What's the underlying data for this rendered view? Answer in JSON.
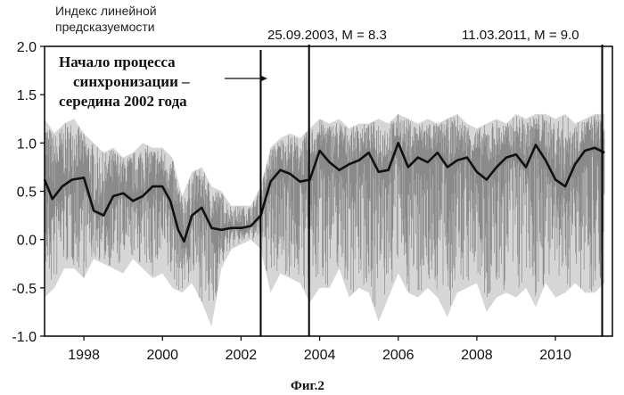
{
  "chart_data": {
    "type": "line",
    "title": "",
    "ylabel_line1": "Индекс линейной",
    "ylabel_line2": "предсказуемости",
    "caption": "Фиг.2",
    "xlim": [
      1997.0,
      2011.45
    ],
    "ylim": [
      -1.0,
      2.0
    ],
    "x_ticks": [
      1998,
      2000,
      2002,
      2004,
      2006,
      2008,
      2010
    ],
    "x_tick_labels": [
      "1998",
      "2000",
      "2002",
      "2004",
      "2006",
      "2008",
      "2010"
    ],
    "y_ticks": [
      -1.0,
      -0.5,
      0.0,
      0.5,
      1.0,
      1.5,
      2.0
    ],
    "y_tick_labels": [
      "-1.0",
      "-0.5",
      "0.0",
      "0.5",
      "1.0",
      "1.5",
      "2.0"
    ],
    "grid": false,
    "legend": "none",
    "series": [
      {
        "role": "raw",
        "color": "#8a8a8a",
        "x": [
          1997.0,
          1997.25,
          1997.5,
          1997.75,
          1998.0,
          1998.25,
          1998.5,
          1998.75,
          1999.0,
          1999.25,
          1999.5,
          1999.75,
          2000.0,
          2000.25,
          2000.5,
          2000.75,
          2001.0,
          2001.25,
          2001.5,
          2001.75,
          2002.0,
          2002.25,
          2002.5,
          2002.75,
          2003.0,
          2003.25,
          2003.5,
          2003.75,
          2004.0,
          2004.25,
          2004.5,
          2004.75,
          2005.0,
          2005.25,
          2005.5,
          2005.75,
          2006.0,
          2006.25,
          2006.5,
          2006.75,
          2007.0,
          2007.25,
          2007.5,
          2007.75,
          2008.0,
          2008.25,
          2008.5,
          2008.75,
          2009.0,
          2009.25,
          2009.5,
          2009.75,
          2010.0,
          2010.25,
          2010.5,
          2010.75,
          2011.0,
          2011.25
        ],
        "y_upper": [
          1.25,
          1.1,
          1.2,
          1.25,
          1.1,
          1.0,
          0.9,
          0.95,
          0.85,
          0.9,
          1.0,
          0.95,
          0.95,
          0.85,
          0.45,
          0.7,
          0.75,
          0.55,
          0.5,
          0.35,
          0.35,
          0.35,
          0.55,
          0.95,
          1.05,
          1.1,
          1.05,
          1.15,
          1.25,
          1.2,
          1.25,
          1.15,
          1.2,
          1.2,
          1.25,
          1.2,
          1.3,
          1.25,
          1.2,
          1.25,
          1.2,
          1.25,
          1.3,
          1.2,
          1.15,
          1.2,
          1.25,
          1.2,
          1.3,
          1.25,
          1.3,
          1.3,
          1.25,
          1.3,
          1.2,
          1.25,
          1.3,
          1.3
        ],
        "y_lower": [
          -0.6,
          -0.5,
          -0.3,
          -0.3,
          -0.4,
          -0.2,
          -0.25,
          -0.3,
          -0.35,
          -0.2,
          -0.3,
          -0.4,
          -0.35,
          -0.5,
          -0.55,
          -0.45,
          -0.65,
          -0.9,
          -0.3,
          -0.1,
          -0.05,
          0.0,
          -0.1,
          -0.55,
          -0.35,
          -0.4,
          -0.45,
          -0.65,
          -0.5,
          -0.5,
          -0.3,
          -0.6,
          -0.5,
          -0.55,
          -0.85,
          -0.6,
          -0.35,
          -0.55,
          -0.6,
          -0.5,
          -0.6,
          -0.8,
          -0.55,
          -0.5,
          -0.45,
          -0.75,
          -0.6,
          -0.55,
          -0.6,
          -0.5,
          -0.7,
          -0.45,
          -0.6,
          -0.55,
          -0.45,
          -0.55,
          -0.55,
          -0.45
        ]
      },
      {
        "role": "smoothed",
        "color": "#111111",
        "x": [
          1997.0,
          1997.2,
          1997.45,
          1997.7,
          1998.0,
          1998.25,
          1998.5,
          1998.75,
          1999.0,
          1999.25,
          1999.5,
          1999.75,
          2000.0,
          2000.2,
          2000.4,
          2000.55,
          2000.75,
          2001.0,
          2001.25,
          2001.5,
          2001.75,
          2002.0,
          2002.25,
          2002.5,
          2002.75,
          2003.0,
          2003.25,
          2003.5,
          2003.75,
          2004.0,
          2004.25,
          2004.5,
          2004.75,
          2005.0,
          2005.25,
          2005.5,
          2005.75,
          2006.0,
          2006.25,
          2006.5,
          2006.75,
          2007.0,
          2007.25,
          2007.5,
          2007.75,
          2008.0,
          2008.25,
          2008.5,
          2008.75,
          2009.0,
          2009.25,
          2009.5,
          2009.75,
          2010.0,
          2010.25,
          2010.5,
          2010.75,
          2011.0,
          2011.25
        ],
        "values": [
          0.62,
          0.42,
          0.55,
          0.62,
          0.64,
          0.3,
          0.25,
          0.45,
          0.48,
          0.4,
          0.45,
          0.55,
          0.55,
          0.4,
          0.1,
          -0.02,
          0.25,
          0.33,
          0.12,
          0.1,
          0.12,
          0.12,
          0.14,
          0.25,
          0.6,
          0.72,
          0.68,
          0.6,
          0.62,
          0.92,
          0.8,
          0.72,
          0.78,
          0.82,
          0.9,
          0.7,
          0.72,
          1.0,
          0.75,
          0.85,
          0.8,
          0.9,
          0.75,
          0.82,
          0.85,
          0.7,
          0.62,
          0.75,
          0.85,
          0.88,
          0.75,
          0.98,
          0.82,
          0.62,
          0.55,
          0.78,
          0.92,
          0.95,
          0.9
        ]
      }
    ],
    "event_lines": [
      {
        "x": 2002.5,
        "label": ""
      },
      {
        "x": 2003.73,
        "label": "25.09.2003, M = 8.3"
      },
      {
        "x": 2011.19,
        "label": "11.03.2011, M = 9.0"
      }
    ],
    "annotation": {
      "lines": [
        "Начало процесса",
        "синхронизации –",
        "середина 2002 года"
      ],
      "arrow_to_x": 2002.5
    }
  }
}
